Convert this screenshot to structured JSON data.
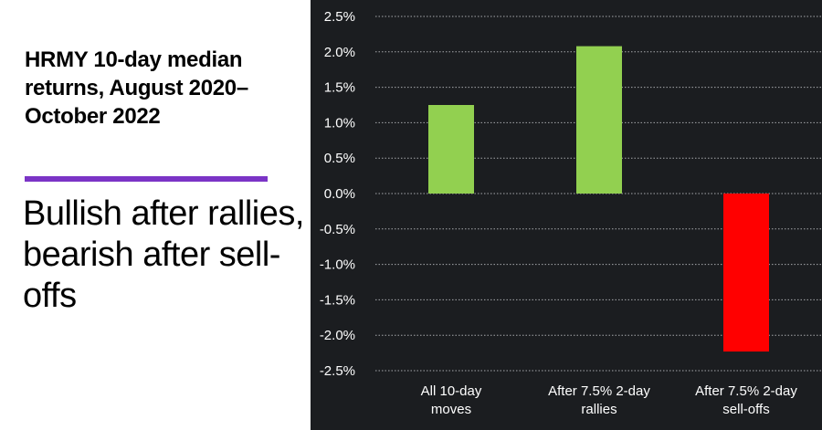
{
  "left_panel": {
    "title": "HRMY 10-day median returns, August 2020–October 2022",
    "subtitle": "Bullish after rallies, bearish after sell-offs"
  },
  "colors": {
    "background": "#1b1d20",
    "gridline": "#a6a8ab",
    "positive_bar": "#92d050",
    "negative_bar": "#ff0000",
    "accent_rule": "#7b34c6"
  },
  "chart_data": {
    "type": "bar",
    "categories": [
      [
        "All 10-day",
        "moves"
      ],
      [
        "After 7.5% 2-day",
        "rallies"
      ],
      [
        "After 7.5% 2-day",
        "sell-offs"
      ]
    ],
    "values": [
      1.25,
      2.08,
      -2.23
    ],
    "ylim": [
      -2.5,
      2.5
    ],
    "yticks": [
      2.5,
      2.0,
      1.5,
      1.0,
      0.5,
      0.0,
      -0.5,
      -1.0,
      -1.5,
      -2.0,
      -2.5
    ],
    "ytick_labels": [
      "2.5%",
      "2.0%",
      "1.5%",
      "1.0%",
      "0.5%",
      "0.0%",
      "-0.5%",
      "-1.0%",
      "-1.5%",
      "-2.0%",
      "-2.5%"
    ],
    "grid": true,
    "legend": "none"
  }
}
